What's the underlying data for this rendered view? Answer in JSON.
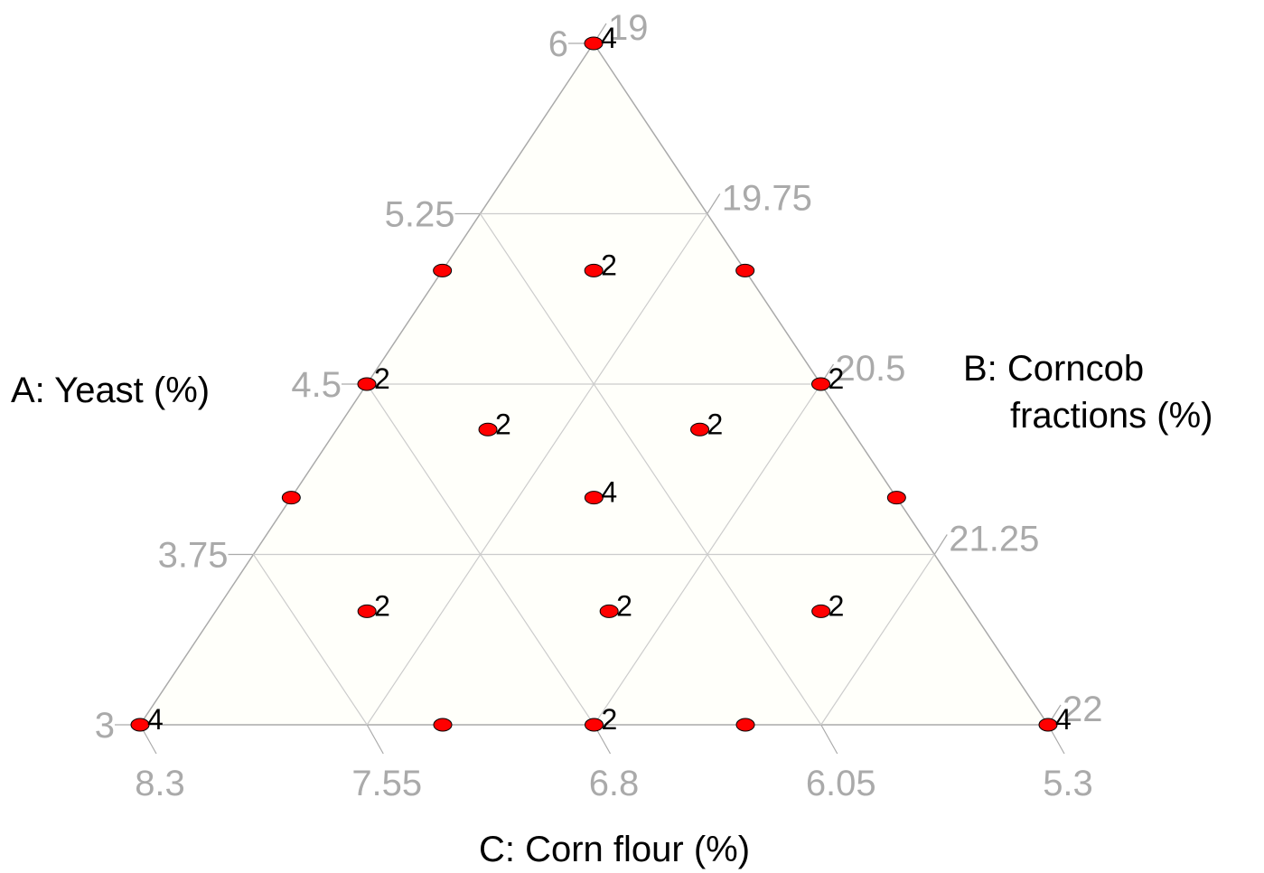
{
  "chart_data": {
    "type": "ternary",
    "a_label": "A: Yeast (%)",
    "b_label": "B: Corncob fractions (%)",
    "c_label": "C: Corn flour (%)",
    "alim": [
      3,
      6
    ],
    "aticks": [
      3,
      3.75,
      4.5,
      5.25,
      6
    ],
    "blim": [
      19,
      22
    ],
    "bticks": [
      19,
      19.75,
      20.5,
      21.25,
      22
    ],
    "clim": [
      5.3,
      8.3
    ],
    "cticks": [
      8.3,
      7.55,
      6.8,
      6.05,
      5.3
    ],
    "grid": true,
    "series": [
      {
        "color": "#ff0000",
        "a": [
          6,
          5,
          5,
          5,
          4.5,
          4.5,
          4.3,
          4.3,
          4,
          4,
          4,
          3.5,
          3.5,
          3.5,
          3,
          3,
          3,
          3,
          3
        ],
        "b": [
          19,
          19,
          19.5,
          20,
          19,
          20.5,
          19.5,
          20.2,
          20,
          19,
          21,
          19.5,
          20.3,
          21,
          19,
          20,
          20.5,
          21,
          22
        ],
        "c": [
          5.3,
          6.3,
          5.8,
          5.3,
          6.8,
          5.3,
          6.5,
          5.8,
          6.3,
          7.3,
          5.3,
          7.3,
          6.5,
          5.8,
          8.3,
          7.3,
          6.8,
          6.3,
          5.3
        ],
        "replicates": [
          4,
          null,
          2,
          null,
          2,
          2,
          2,
          2,
          4,
          null,
          null,
          2,
          2,
          2,
          4,
          null,
          2,
          null,
          4
        ]
      }
    ]
  }
}
